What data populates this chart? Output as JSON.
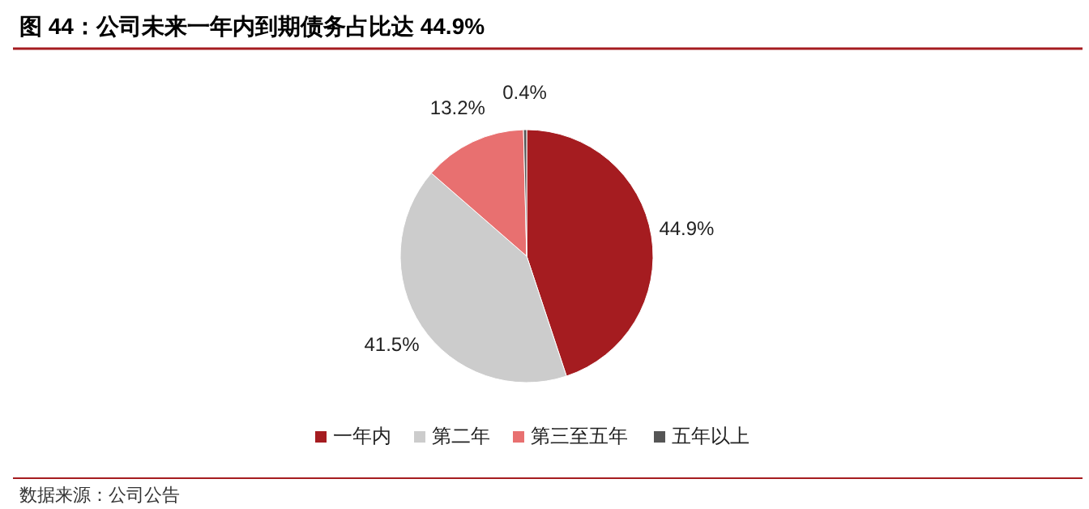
{
  "chart_data": {
    "type": "pie",
    "title": "图 44：公司未来一年内到期债务占比达 44.9%",
    "categories": [
      "一年内",
      "第二年",
      "第三至五年",
      "五年以上"
    ],
    "values": [
      44.9,
      41.5,
      13.2,
      0.4
    ],
    "colors": [
      "#a51c20",
      "#cccccc",
      "#e87070",
      "#555555"
    ],
    "value_labels": [
      "44.9%",
      "41.5%",
      "13.2%",
      "0.4%"
    ],
    "legend": "bottom",
    "annotations": [
      "数据来源：公司公告"
    ]
  }
}
